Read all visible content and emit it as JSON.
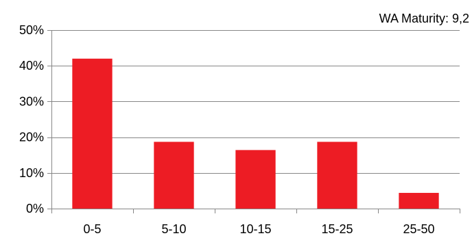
{
  "chart_data": {
    "type": "bar",
    "categories": [
      "0-5",
      "5-10",
      "10-15",
      "15-25",
      "25-50"
    ],
    "values": [
      42,
      18.7,
      16.4,
      18.7,
      4.4
    ],
    "value_unit": "%",
    "ylim": [
      0,
      50
    ],
    "y_ticks": [
      0,
      10,
      20,
      30,
      40,
      50
    ],
    "y_tick_labels": [
      "0%",
      "10%",
      "20%",
      "30%",
      "40%",
      "50%"
    ],
    "grid": true,
    "legend": "none",
    "annotation": "WA Maturity: 9,2",
    "title": "",
    "xlabel": "",
    "ylabel": "",
    "bar_color": "#ED1C24",
    "grid_color": "#868686",
    "axis_color": "#868686"
  }
}
